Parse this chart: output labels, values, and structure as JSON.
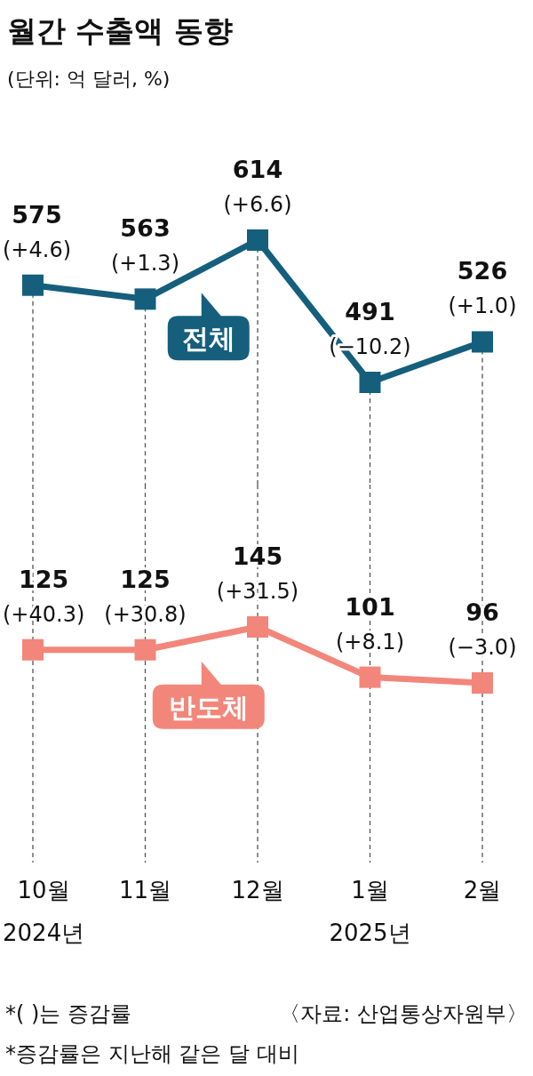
{
  "chart_data": [
    {
      "type": "line",
      "title": "월간 수출액 동향",
      "subtitle": "(단위: 억 달러, %)",
      "categories": [
        null,
        null,
        null,
        null,
        null
      ],
      "grid": "x",
      "marker": "square",
      "series": [
        {
          "name": "전체",
          "color": "#155f7c",
          "values": [
            575,
            563,
            614,
            491,
            526
          ],
          "value_labels": [
            "575\n(+4.6)",
            "563\n(+1.3)",
            "614\n(+6.6)",
            "491\n(−10.2)",
            "526\n(+1.0)"
          ]
        }
      ]
    },
    {
      "type": "line",
      "categories": [
        "10월\n2024년",
        "11월",
        "12월",
        "1월\n2025년",
        "2월"
      ],
      "tick_labels": "x",
      "grid": "x",
      "marker": "square",
      "series": [
        {
          "name": "반도체",
          "color": "#f2867a",
          "values": [
            125,
            125,
            145,
            101,
            96
          ],
          "value_labels": [
            "125\n(+40.3)",
            "125\n(+30.8)",
            "145\n(+31.5)",
            "101\n(+8.1)",
            "96\n(−3.0)"
          ]
        }
      ],
      "annotations": [
        "*(    )는 증감률",
        "〈자료: 산업통상자원부〉",
        "*증감률은 지난해 같은 달 대비"
      ]
    }
  ]
}
